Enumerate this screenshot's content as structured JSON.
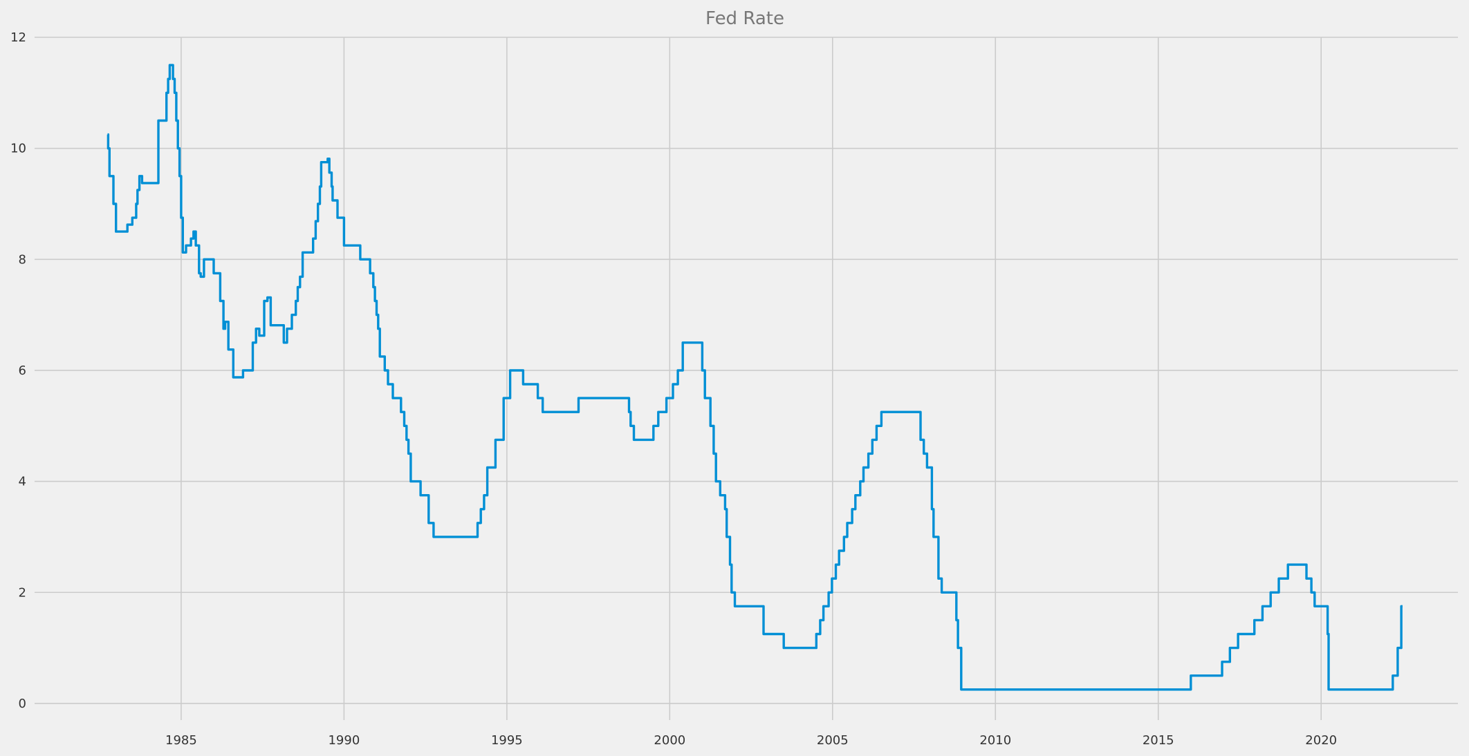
{
  "colors": {
    "background": "#f0f0f0",
    "grid": "#cbcbcb",
    "series": "#008fd5",
    "title": "#777777",
    "tick": "#333333"
  },
  "chart_data": {
    "type": "line",
    "title": "Fed Rate",
    "xlabel": "",
    "ylabel": "",
    "line_style": "step-post",
    "grid": true,
    "legend": "none",
    "xlim": [
      1980.5,
      2024.2
    ],
    "ylim": [
      -0.3,
      12
    ],
    "xticks": [
      1985,
      1990,
      1995,
      2000,
      2005,
      2010,
      2015,
      2020
    ],
    "xtick_labels": [
      "1985",
      "1990",
      "1995",
      "2000",
      "2005",
      "2010",
      "2015",
      "2020"
    ],
    "yticks": [
      0,
      2,
      4,
      6,
      8,
      10,
      12
    ],
    "ytick_labels": [
      "0",
      "2",
      "4",
      "6",
      "8",
      "10",
      "12"
    ],
    "series": [
      {
        "color": "#008fd5",
        "x": [
          1982.74,
          1982.76,
          1982.8,
          1982.92,
          1983.0,
          1983.35,
          1983.5,
          1983.62,
          1983.66,
          1983.72,
          1983.8,
          1983.88,
          1984.3,
          1984.55,
          1984.6,
          1984.65,
          1984.75,
          1984.8,
          1984.85,
          1984.9,
          1984.95,
          1985.0,
          1985.05,
          1985.15,
          1985.3,
          1985.38,
          1985.45,
          1985.55,
          1985.6,
          1985.7,
          1986.0,
          1986.2,
          1986.3,
          1986.35,
          1986.45,
          1986.6,
          1986.9,
          1987.2,
          1987.3,
          1987.4,
          1987.55,
          1987.65,
          1987.75,
          1987.85,
          1988.15,
          1988.25,
          1988.4,
          1988.52,
          1988.58,
          1988.65,
          1988.73,
          1988.82,
          1989.05,
          1989.13,
          1989.2,
          1989.26,
          1989.3,
          1989.5,
          1989.55,
          1989.62,
          1989.65,
          1989.7,
          1989.8,
          1990.0,
          1990.5,
          1990.8,
          1990.9,
          1990.95,
          1991.0,
          1991.05,
          1991.1,
          1991.25,
          1991.35,
          1991.5,
          1991.75,
          1991.85,
          1991.92,
          1991.98,
          1992.05,
          1992.35,
          1992.6,
          1992.75,
          1994.1,
          1994.2,
          1994.3,
          1994.4,
          1994.65,
          1994.9,
          1995.1,
          1995.5,
          1995.95,
          1996.1,
          1997.2,
          1998.75,
          1998.8,
          1998.9,
          1999.5,
          1999.65,
          1999.9,
          2000.1,
          2000.25,
          2000.4,
          2001.0,
          2001.08,
          2001.25,
          2001.35,
          2001.42,
          2001.55,
          2001.7,
          2001.75,
          2001.85,
          2001.9,
          2002.0,
          2002.88,
          2003.5,
          2004.5,
          2004.62,
          2004.72,
          2004.88,
          2004.98,
          2005.1,
          2005.2,
          2005.35,
          2005.45,
          2005.6,
          2005.7,
          2005.85,
          2005.95,
          2006.1,
          2006.22,
          2006.35,
          2006.5,
          2007.7,
          2007.8,
          2007.9,
          2008.05,
          2008.1,
          2008.25,
          2008.35,
          2008.5,
          2008.8,
          2008.85,
          2008.95,
          2016.0,
          2016.96,
          2017.2,
          2017.45,
          2017.95,
          2018.2,
          2018.45,
          2018.7,
          2018.98,
          2019.55,
          2019.7,
          2019.8,
          2020.2,
          2020.23,
          2020.3,
          2022.2,
          2022.35,
          2022.46,
          2022.5
        ],
        "y": [
          10.25,
          10.0,
          9.5,
          9.0,
          8.5,
          8.625,
          8.75,
          9.0,
          9.25,
          9.5,
          9.375,
          9.375,
          10.5,
          11.0,
          11.25,
          11.5,
          11.25,
          11.0,
          10.5,
          10.0,
          9.5,
          8.75,
          8.125,
          8.25,
          8.375,
          8.5,
          8.25,
          7.75,
          7.6875,
          8.0,
          7.75,
          7.25,
          6.75,
          6.875,
          6.375,
          5.875,
          6.0,
          6.5,
          6.75,
          6.625,
          7.25,
          7.3125,
          6.8125,
          6.8125,
          6.5,
          6.75,
          7.0,
          7.25,
          7.5,
          7.6875,
          8.125,
          8.125,
          8.375,
          8.6875,
          9.0,
          9.3125,
          9.75,
          9.8125,
          9.5625,
          9.3125,
          9.0625,
          9.0625,
          8.75,
          8.25,
          8.0,
          7.75,
          7.5,
          7.25,
          7.0,
          6.75,
          6.25,
          6.0,
          5.75,
          5.5,
          5.25,
          5.0,
          4.75,
          4.5,
          4.0,
          3.75,
          3.25,
          3.0,
          3.25,
          3.5,
          3.75,
          4.25,
          4.75,
          5.5,
          6.0,
          5.75,
          5.5,
          5.25,
          5.5,
          5.25,
          5.0,
          4.75,
          5.0,
          5.25,
          5.5,
          5.75,
          6.0,
          6.5,
          6.0,
          5.5,
          5.0,
          4.5,
          4.0,
          3.75,
          3.5,
          3.0,
          2.5,
          2.0,
          1.75,
          1.25,
          1.0,
          1.25,
          1.5,
          1.75,
          2.0,
          2.25,
          2.5,
          2.75,
          3.0,
          3.25,
          3.5,
          3.75,
          4.0,
          4.25,
          4.5,
          4.75,
          5.0,
          5.25,
          4.75,
          4.5,
          4.25,
          3.5,
          3.0,
          2.25,
          2.0,
          2.0,
          1.5,
          1.0,
          0.25,
          0.5,
          0.75,
          1.0,
          1.25,
          1.5,
          1.75,
          2.0,
          2.25,
          2.5,
          2.25,
          2.0,
          1.75,
          1.25,
          0.25,
          0.25,
          0.5,
          1.0,
          1.75,
          1.75
        ]
      }
    ]
  }
}
